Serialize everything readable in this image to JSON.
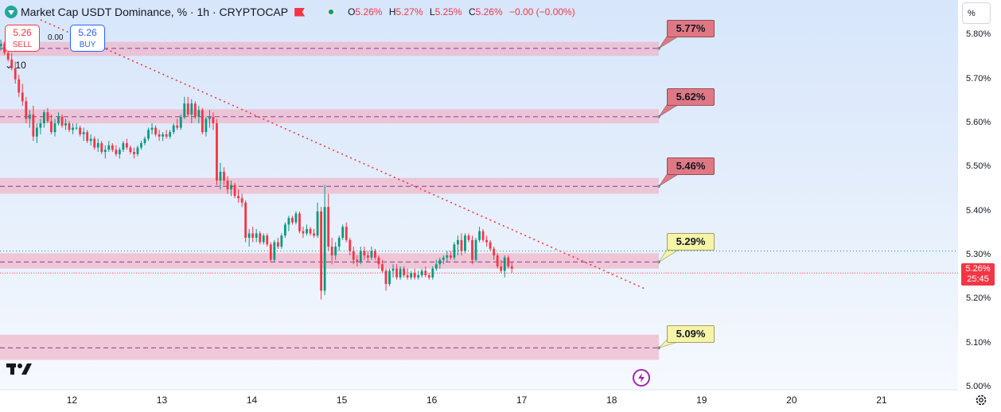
{
  "header": {
    "title": "Market Cap USDT Dominance, % · 1h · CRYPTOCAP",
    "ohlc": {
      "o_label": "O",
      "o": "5.26%",
      "h_label": "H",
      "h": "5.27%",
      "l_label": "L",
      "l": "5.25%",
      "c_label": "C",
      "c": "5.26%",
      "change": "−0.00 (−0.00%)"
    }
  },
  "trade": {
    "sell_price": "5.26",
    "sell_label": "SELL",
    "buy_price": "5.26",
    "buy_label": "BUY",
    "spread": "0.00"
  },
  "indicator": {
    "label": "10"
  },
  "scale_button": "%",
  "current_price": {
    "value": "5.26%",
    "countdown": "25:45"
  },
  "colors": {
    "up": "#089981",
    "down": "#f23645",
    "zone": "#f0b3c6",
    "tag_red": "#e07884",
    "tag_yellow": "#f6f4a6",
    "trendline": "#f23645"
  },
  "chart_data": {
    "type": "candlestick",
    "symbol": "Market Cap USDT Dominance",
    "timeframe": "1h",
    "y_axis": {
      "unit": "%",
      "ticks": [
        "5.00%",
        "5.10%",
        "5.20%",
        "5.30%",
        "5.40%",
        "5.50%",
        "5.60%",
        "5.70%",
        "5.80%"
      ],
      "tick_values": [
        5.0,
        5.1,
        5.2,
        5.3,
        5.4,
        5.5,
        5.6,
        5.7,
        5.8
      ],
      "ylim": [
        4.995,
        5.88
      ]
    },
    "x_axis": {
      "ticks": [
        "12",
        "13",
        "14",
        "15",
        "16",
        "17",
        "18",
        "19",
        "20",
        "21"
      ],
      "tick_positions": [
        0.6,
        1.6,
        2.6,
        3.6,
        4.6,
        5.6,
        6.6,
        7.6,
        8.6,
        9.6
      ],
      "xlim": [
        -0.2,
        10.45
      ]
    },
    "levels": [
      {
        "label": "5.77%",
        "value": 5.77,
        "zone": [
          5.753,
          5.785
        ],
        "style": "red"
      },
      {
        "label": "5.62%",
        "value": 5.615,
        "zone": [
          5.6,
          5.632
        ],
        "style": "red"
      },
      {
        "label": "5.46%",
        "value": 5.457,
        "zone": [
          5.44,
          5.476
        ],
        "style": "red"
      },
      {
        "label": "5.29%",
        "value": 5.285,
        "zone": [
          5.27,
          5.305
        ],
        "style": "yellow"
      },
      {
        "label": "5.09%",
        "value": 5.09,
        "zone": [
          5.063,
          5.12
        ],
        "style": "yellow"
      }
    ],
    "trendline": {
      "start": [
        0.25,
        5.835
      ],
      "end": [
        6.96,
        5.225
      ]
    },
    "current_price_line": 5.26,
    "candles": [
      [
        -0.19,
        5.775,
        5.79,
        5.765,
        5.78
      ],
      [
        -0.15,
        5.78,
        5.785,
        5.755,
        5.76
      ],
      [
        -0.11,
        5.76,
        5.775,
        5.74,
        5.745
      ],
      [
        -0.07,
        5.745,
        5.76,
        5.72,
        5.725
      ],
      [
        -0.03,
        5.725,
        5.74,
        5.69,
        5.7
      ],
      [
        0.01,
        5.7,
        5.71,
        5.66,
        5.67
      ],
      [
        0.05,
        5.67,
        5.69,
        5.64,
        5.65
      ],
      [
        0.09,
        5.65,
        5.66,
        5.6,
        5.61
      ],
      [
        0.13,
        5.61,
        5.63,
        5.59,
        5.62
      ],
      [
        0.17,
        5.62,
        5.64,
        5.56,
        5.57
      ],
      [
        0.21,
        5.57,
        5.6,
        5.555,
        5.59
      ],
      [
        0.25,
        5.59,
        5.61,
        5.575,
        5.6
      ],
      [
        0.29,
        5.6,
        5.63,
        5.59,
        5.625
      ],
      [
        0.33,
        5.625,
        5.635,
        5.6,
        5.605
      ],
      [
        0.37,
        5.605,
        5.62,
        5.575,
        5.58
      ],
      [
        0.41,
        5.58,
        5.61,
        5.57,
        5.6
      ],
      [
        0.45,
        5.6,
        5.625,
        5.595,
        5.615
      ],
      [
        0.49,
        5.615,
        5.62,
        5.59,
        5.595
      ],
      [
        0.53,
        5.595,
        5.61,
        5.585,
        5.6
      ],
      [
        0.57,
        5.6,
        5.605,
        5.58,
        5.585
      ],
      [
        0.61,
        5.585,
        5.6,
        5.575,
        5.59
      ],
      [
        0.65,
        5.59,
        5.6,
        5.585,
        5.59
      ],
      [
        0.69,
        5.59,
        5.595,
        5.57,
        5.575
      ],
      [
        0.73,
        5.575,
        5.59,
        5.56,
        5.58
      ],
      [
        0.77,
        5.58,
        5.585,
        5.555,
        5.56
      ],
      [
        0.81,
        5.56,
        5.575,
        5.55,
        5.565
      ],
      [
        0.85,
        5.565,
        5.57,
        5.54,
        5.545
      ],
      [
        0.89,
        5.545,
        5.565,
        5.535,
        5.555
      ],
      [
        0.93,
        5.555,
        5.56,
        5.53,
        5.535
      ],
      [
        0.97,
        5.535,
        5.55,
        5.52,
        5.54
      ],
      [
        1.01,
        5.54,
        5.56,
        5.535,
        5.55
      ],
      [
        1.05,
        5.55,
        5.555,
        5.535,
        5.54
      ],
      [
        1.09,
        5.54,
        5.55,
        5.525,
        5.53
      ],
      [
        1.13,
        5.53,
        5.545,
        5.52,
        5.54
      ],
      [
        1.17,
        5.54,
        5.56,
        5.535,
        5.555
      ],
      [
        1.21,
        5.555,
        5.565,
        5.54,
        5.545
      ],
      [
        1.25,
        5.545,
        5.55,
        5.53,
        5.535
      ],
      [
        1.29,
        5.535,
        5.545,
        5.52,
        5.53
      ],
      [
        1.33,
        5.53,
        5.55,
        5.525,
        5.545
      ],
      [
        1.37,
        5.545,
        5.56,
        5.54,
        5.555
      ],
      [
        1.41,
        5.555,
        5.57,
        5.55,
        5.565
      ],
      [
        1.45,
        5.565,
        5.59,
        5.56,
        5.585
      ],
      [
        1.49,
        5.585,
        5.6,
        5.575,
        5.59
      ],
      [
        1.53,
        5.59,
        5.595,
        5.57,
        5.575
      ],
      [
        1.57,
        5.575,
        5.585,
        5.56,
        5.57
      ],
      [
        1.61,
        5.57,
        5.58,
        5.56,
        5.575
      ],
      [
        1.65,
        5.575,
        5.585,
        5.565,
        5.57
      ],
      [
        1.69,
        5.57,
        5.585,
        5.565,
        5.58
      ],
      [
        1.73,
        5.58,
        5.6,
        5.575,
        5.595
      ],
      [
        1.77,
        5.595,
        5.61,
        5.585,
        5.59
      ],
      [
        1.81,
        5.59,
        5.62,
        5.585,
        5.615
      ],
      [
        1.85,
        5.615,
        5.66,
        5.61,
        5.645
      ],
      [
        1.89,
        5.645,
        5.66,
        5.615,
        5.62
      ],
      [
        1.93,
        5.62,
        5.655,
        5.6,
        5.645
      ],
      [
        1.97,
        5.645,
        5.65,
        5.61,
        5.615
      ],
      [
        2.01,
        5.615,
        5.64,
        5.6,
        5.63
      ],
      [
        2.05,
        5.63,
        5.635,
        5.575,
        5.58
      ],
      [
        2.09,
        5.58,
        5.615,
        5.57,
        5.61
      ],
      [
        2.13,
        5.61,
        5.63,
        5.59,
        5.615
      ],
      [
        2.17,
        5.615,
        5.625,
        5.585,
        5.6
      ],
      [
        2.21,
        5.6,
        5.61,
        5.46,
        5.47
      ],
      [
        2.25,
        5.47,
        5.51,
        5.45,
        5.49
      ],
      [
        2.29,
        5.49,
        5.5,
        5.46,
        5.47
      ],
      [
        2.33,
        5.47,
        5.48,
        5.44,
        5.45
      ],
      [
        2.37,
        5.45,
        5.47,
        5.435,
        5.46
      ],
      [
        2.41,
        5.46,
        5.465,
        5.43,
        5.435
      ],
      [
        2.45,
        5.435,
        5.45,
        5.42,
        5.43
      ],
      [
        2.49,
        5.43,
        5.44,
        5.41,
        5.42
      ],
      [
        2.53,
        5.42,
        5.425,
        5.33,
        5.34
      ],
      [
        2.57,
        5.34,
        5.36,
        5.32,
        5.35
      ],
      [
        2.61,
        5.35,
        5.365,
        5.33,
        5.34
      ],
      [
        2.65,
        5.34,
        5.36,
        5.33,
        5.35
      ],
      [
        2.69,
        5.35,
        5.355,
        5.325,
        5.33
      ],
      [
        2.73,
        5.33,
        5.35,
        5.325,
        5.345
      ],
      [
        2.77,
        5.345,
        5.35,
        5.32,
        5.325
      ],
      [
        2.81,
        5.325,
        5.33,
        5.285,
        5.29
      ],
      [
        2.85,
        5.29,
        5.335,
        5.285,
        5.33
      ],
      [
        2.89,
        5.33,
        5.34,
        5.315,
        5.32
      ],
      [
        2.93,
        5.32,
        5.35,
        5.315,
        5.345
      ],
      [
        2.97,
        5.345,
        5.375,
        5.34,
        5.37
      ],
      [
        3.01,
        5.37,
        5.39,
        5.355,
        5.385
      ],
      [
        3.05,
        5.385,
        5.39,
        5.37,
        5.375
      ],
      [
        3.09,
        5.375,
        5.4,
        5.37,
        5.395
      ],
      [
        3.13,
        5.395,
        5.4,
        5.35,
        5.355
      ],
      [
        3.17,
        5.355,
        5.365,
        5.34,
        5.35
      ],
      [
        3.21,
        5.35,
        5.37,
        5.345,
        5.36
      ],
      [
        3.25,
        5.36,
        5.365,
        5.345,
        5.35
      ],
      [
        3.29,
        5.35,
        5.36,
        5.34,
        5.345
      ],
      [
        3.33,
        5.345,
        5.42,
        5.34,
        5.4
      ],
      [
        3.37,
        5.4,
        5.41,
        5.2,
        5.22
      ],
      [
        3.41,
        5.22,
        5.46,
        5.21,
        5.41
      ],
      [
        3.45,
        5.41,
        5.44,
        5.31,
        5.32
      ],
      [
        3.49,
        5.32,
        5.34,
        5.28,
        5.3
      ],
      [
        3.53,
        5.3,
        5.33,
        5.29,
        5.32
      ],
      [
        3.57,
        5.32,
        5.345,
        5.31,
        5.34
      ],
      [
        3.61,
        5.34,
        5.37,
        5.335,
        5.365
      ],
      [
        3.65,
        5.365,
        5.375,
        5.33,
        5.335
      ],
      [
        3.69,
        5.335,
        5.34,
        5.3,
        5.31
      ],
      [
        3.73,
        5.31,
        5.32,
        5.28,
        5.29
      ],
      [
        3.77,
        5.29,
        5.3,
        5.275,
        5.285
      ],
      [
        3.81,
        5.285,
        5.32,
        5.28,
        5.31
      ],
      [
        3.85,
        5.31,
        5.32,
        5.29,
        5.3
      ],
      [
        3.89,
        5.3,
        5.31,
        5.285,
        5.295
      ],
      [
        3.93,
        5.295,
        5.32,
        5.29,
        5.31
      ],
      [
        3.97,
        5.31,
        5.315,
        5.29,
        5.295
      ],
      [
        4.01,
        5.295,
        5.3,
        5.27,
        5.28
      ],
      [
        4.05,
        5.28,
        5.29,
        5.26,
        5.265
      ],
      [
        4.09,
        5.265,
        5.27,
        5.22,
        5.235
      ],
      [
        4.13,
        5.235,
        5.27,
        5.23,
        5.265
      ],
      [
        4.17,
        5.265,
        5.28,
        5.25,
        5.27
      ],
      [
        4.21,
        5.27,
        5.28,
        5.245,
        5.25
      ],
      [
        4.25,
        5.25,
        5.275,
        5.245,
        5.27
      ],
      [
        4.29,
        5.27,
        5.275,
        5.25,
        5.255
      ],
      [
        4.33,
        5.255,
        5.27,
        5.245,
        5.25
      ],
      [
        4.37,
        5.25,
        5.265,
        5.245,
        5.26
      ],
      [
        4.41,
        5.26,
        5.27,
        5.245,
        5.25
      ],
      [
        4.45,
        5.25,
        5.265,
        5.245,
        5.255
      ],
      [
        4.49,
        5.255,
        5.27,
        5.25,
        5.265
      ],
      [
        4.53,
        5.265,
        5.275,
        5.25,
        5.255
      ],
      [
        4.57,
        5.255,
        5.26,
        5.245,
        5.25
      ],
      [
        4.61,
        5.25,
        5.275,
        5.245,
        5.27
      ],
      [
        4.65,
        5.27,
        5.29,
        5.265,
        5.28
      ],
      [
        4.69,
        5.28,
        5.295,
        5.27,
        5.29
      ],
      [
        4.73,
        5.29,
        5.3,
        5.28,
        5.295
      ],
      [
        4.77,
        5.295,
        5.31,
        5.285,
        5.3
      ],
      [
        4.81,
        5.3,
        5.31,
        5.29,
        5.295
      ],
      [
        4.85,
        5.295,
        5.33,
        5.29,
        5.325
      ],
      [
        4.89,
        5.325,
        5.345,
        5.3,
        5.335
      ],
      [
        4.93,
        5.335,
        5.35,
        5.3,
        5.31
      ],
      [
        4.97,
        5.31,
        5.35,
        5.305,
        5.345
      ],
      [
        5.01,
        5.345,
        5.35,
        5.33,
        5.335
      ],
      [
        5.05,
        5.335,
        5.345,
        5.28,
        5.29
      ],
      [
        5.09,
        5.29,
        5.34,
        5.285,
        5.335
      ],
      [
        5.13,
        5.335,
        5.365,
        5.33,
        5.355
      ],
      [
        5.17,
        5.355,
        5.36,
        5.33,
        5.335
      ],
      [
        5.21,
        5.335,
        5.345,
        5.32,
        5.33
      ],
      [
        5.25,
        5.33,
        5.335,
        5.31,
        5.315
      ],
      [
        5.29,
        5.315,
        5.32,
        5.29,
        5.3
      ],
      [
        5.33,
        5.3,
        5.305,
        5.27,
        5.275
      ],
      [
        5.37,
        5.275,
        5.29,
        5.26,
        5.265
      ],
      [
        5.41,
        5.265,
        5.3,
        5.25,
        5.295
      ],
      [
        5.45,
        5.295,
        5.3,
        5.27,
        5.275
      ],
      [
        5.49,
        5.275,
        5.285,
        5.26,
        5.27
      ]
    ]
  }
}
